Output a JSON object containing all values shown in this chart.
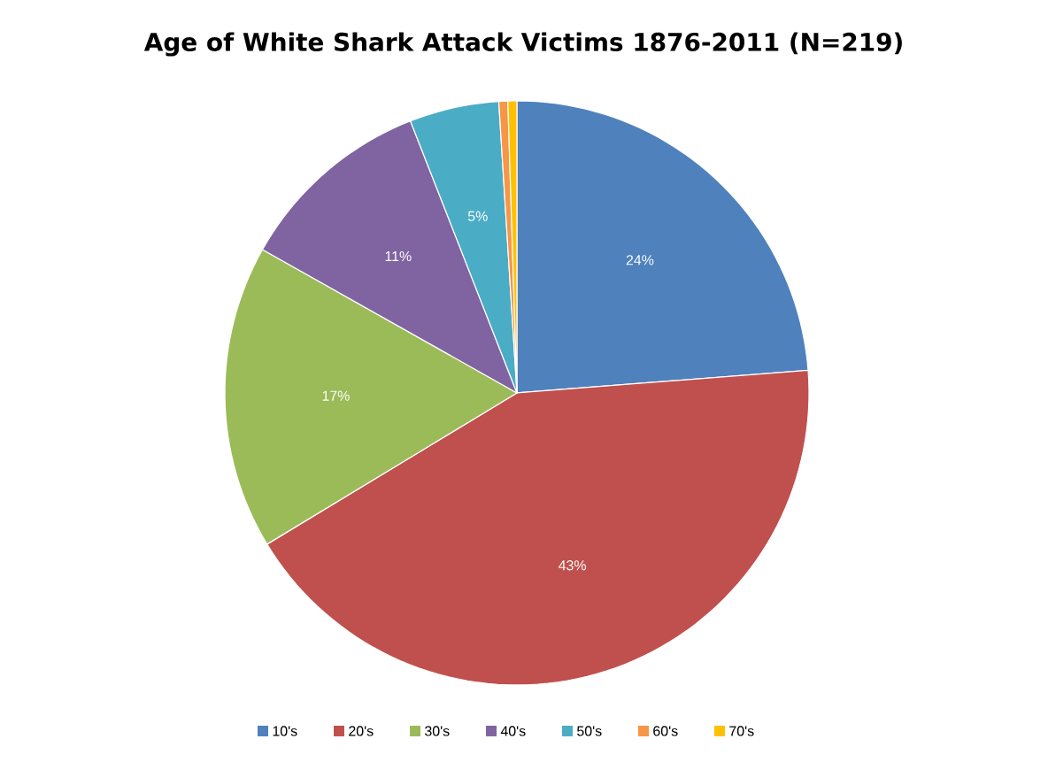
{
  "chart_data": {
    "type": "pie",
    "title": "Age of White Shark Attack Victims 1876-2011 (N=219)",
    "categories": [
      "10's",
      "20's",
      "30's",
      "40's",
      "50's",
      "60's",
      "70's"
    ],
    "values": [
      24,
      43,
      17,
      11,
      5,
      0.5,
      0.5
    ],
    "value_labels": [
      "24%",
      "43%",
      "17%",
      "11%",
      "5%",
      null,
      null
    ],
    "colors": [
      "#4f81bd",
      "#c0504d",
      "#9bbb59",
      "#8064a2",
      "#4bacc6",
      "#f79646",
      "#ffc000"
    ],
    "legend": "bottom"
  }
}
